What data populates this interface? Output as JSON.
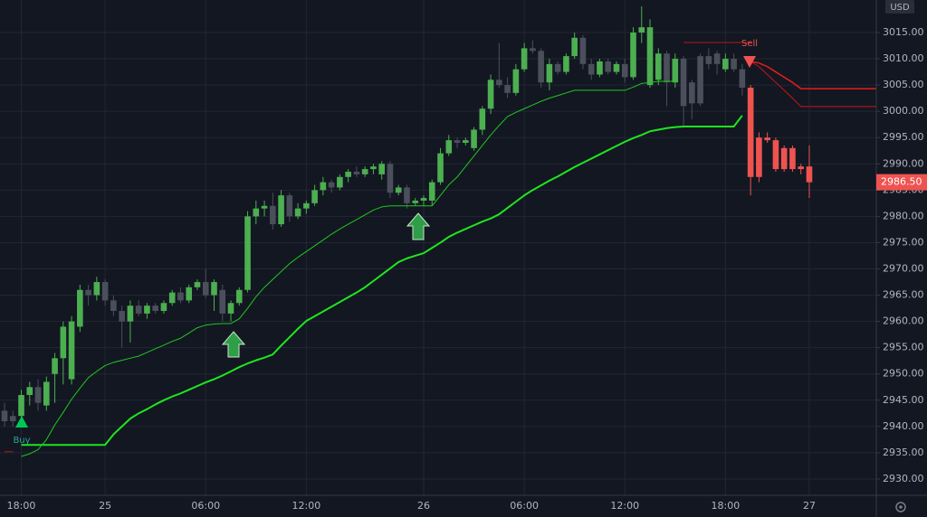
{
  "chart_data": {
    "type": "candlestick",
    "currency": "USD",
    "annotations": [
      "Buy",
      "Sell"
    ],
    "last_price": {
      "value": 2986.5,
      "label": "2986.50"
    },
    "grid": true,
    "ylim": [
      2926.9,
      3021.19
    ],
    "yticks": [
      {
        "value": 2930,
        "label": "2930.00"
      },
      {
        "value": 2935,
        "label": "2935.00"
      },
      {
        "value": 2940,
        "label": "2940.00"
      },
      {
        "value": 2945,
        "label": "2945.00"
      },
      {
        "value": 2950,
        "label": "2950.00"
      },
      {
        "value": 2955,
        "label": "2955.00"
      },
      {
        "value": 2960,
        "label": "2960.00"
      },
      {
        "value": 2965,
        "label": "2965.00"
      },
      {
        "value": 2970,
        "label": "2970.00"
      },
      {
        "value": 2975,
        "label": "2975.00"
      },
      {
        "value": 2980,
        "label": "2980.00"
      },
      {
        "value": 2985,
        "label": "2985.00"
      },
      {
        "value": 2990,
        "label": "2990.00"
      },
      {
        "value": 2995,
        "label": "2995.00"
      },
      {
        "value": 3000,
        "label": "3000.00"
      },
      {
        "value": 3005,
        "label": "3005.00"
      },
      {
        "value": 3010,
        "label": "3010.00"
      },
      {
        "value": 3015,
        "label": "3015.00"
      }
    ],
    "categories": [
      null,
      null,
      "18:00",
      null,
      null,
      null,
      null,
      null,
      null,
      null,
      null,
      null,
      "25",
      null,
      null,
      null,
      null,
      null,
      null,
      null,
      null,
      null,
      null,
      null,
      "06:00",
      null,
      null,
      null,
      null,
      null,
      null,
      null,
      null,
      null,
      null,
      null,
      "12:00",
      null,
      null,
      null,
      null,
      null,
      null,
      null,
      null,
      null,
      null,
      null,
      null,
      null,
      "26",
      null,
      null,
      null,
      null,
      null,
      null,
      null,
      null,
      null,
      null,
      null,
      "06:00",
      null,
      null,
      null,
      null,
      null,
      null,
      null,
      null,
      null,
      null,
      null,
      "12:00",
      null,
      null,
      null,
      null,
      null,
      null,
      null,
      null,
      null,
      null,
      null,
      "18:00",
      null,
      null,
      null,
      null,
      null,
      null,
      null,
      null,
      null,
      "27",
      null,
      null,
      null,
      null,
      null,
      null,
      null,
      null
    ],
    "open": [
      2943,
      2941,
      2942,
      2946,
      2947.5,
      2944,
      2950,
      2953,
      2949,
      2959,
      2966,
      2965,
      2967.5,
      2964,
      2962,
      2960,
      2963,
      2961.5,
      2963,
      2962,
      2963.5,
      2965.5,
      2964,
      2966.5,
      2967.5,
      2965,
      2966,
      2961.5,
      2963.5,
      2966,
      2980,
      2981.5,
      2982,
      2978.5,
      2984,
      2980,
      2981.5,
      2982.5,
      2985,
      2986.5,
      2985.5,
      2987.5,
      2988.5,
      2988,
      2989,
      2988,
      2990,
      2984.5,
      2985.5,
      2982.5,
      2983,
      2983,
      2986.5,
      2992,
      2994.5,
      2994,
      2993,
      2996.5,
      3000.5,
      3006,
      3005,
      3003.5,
      3008,
      3012,
      3011.5,
      3005.5,
      3009,
      3007.5,
      3010.5,
      3014,
      3009,
      3007,
      3009.5,
      3007.5,
      3009,
      3006.5,
      3015,
      3005,
      3006,
      3011,
      3005.5,
      3010,
      3005.5,
      3001.5,
      3010.5,
      3009,
      3008,
      3010,
      3008,
      3004.5,
      2987.5,
      2995,
      2994.5,
      2989,
      2993,
      2989,
      2989.5,
      null,
      null,
      null,
      null,
      null,
      null,
      null,
      null
    ],
    "high": [
      2944.5,
      2943,
      2947,
      2948.5,
      2949,
      2949.5,
      2954,
      2960,
      2961,
      2967,
      2967,
      2968.5,
      2968,
      2965,
      2963,
      2964,
      2964,
      2963.5,
      2963.5,
      2964,
      2966,
      2966.5,
      2967,
      2968,
      2970,
      2968,
      2967,
      2964,
      2966.5,
      2981,
      2983,
      2983,
      2984.5,
      2985,
      2984.5,
      2982.5,
      2983,
      2986,
      2987.5,
      2987,
      2988,
      2989,
      2989.5,
      2989.5,
      2990,
      2990.5,
      2990.5,
      2986,
      2986,
      2983.5,
      2984,
      2987,
      2993,
      2995.5,
      2995,
      2995,
      2997,
      3001,
      3007,
      3013,
      3006.5,
      3009,
      3013,
      3013.5,
      3012,
      3010,
      3009.5,
      3011,
      3015,
      3014.5,
      3010,
      3010,
      3010,
      3009.5,
      3010,
      3016,
      3020,
      3017.5,
      3012,
      3011.5,
      3011,
      3010.5,
      3006,
      3011,
      3012,
      3011.5,
      3011,
      3011,
      3009,
      3005,
      2996,
      2996,
      2995,
      2993.5,
      2993.5,
      2990,
      2993.5,
      null,
      null,
      null,
      null,
      null,
      null,
      null,
      null
    ],
    "low": [
      2940,
      2940,
      2941,
      2944,
      2943,
      2943,
      2944.5,
      2948,
      2948,
      2958,
      2963,
      2964,
      2963,
      2961,
      2955,
      2956,
      2961,
      2960.5,
      2961.5,
      2961.5,
      2963,
      2963.5,
      2963.5,
      2966,
      2964.5,
      2962,
      2960,
      2960,
      2963,
      2965.5,
      2978.5,
      2980,
      2977.5,
      2978,
      2979,
      2979.5,
      2980.5,
      2982,
      2984,
      2984.5,
      2985,
      2986.5,
      2987.5,
      2987.5,
      2988,
      2987,
      2983.5,
      2984,
      2981.5,
      2982,
      2982,
      2982,
      2986,
      2991.5,
      2993,
      2993.5,
      2992.5,
      2995.5,
      2999.5,
      3004.5,
      3002.5,
      3003,
      3007.5,
      3011,
      3004.5,
      3004,
      3007,
      3007,
      3010,
      3008,
      3006,
      3006.5,
      3007,
      3007,
      3005.5,
      3006,
      3013,
      3004.5,
      3005,
      3001,
      3004.5,
      2997,
      2998.5,
      3001,
      3008,
      3007,
      3007.5,
      3007.5,
      3003,
      2984,
      2986.5,
      2994,
      2988.5,
      2988.5,
      2988.5,
      2988,
      2983.5,
      null,
      null,
      null,
      null,
      null,
      null,
      null,
      null
    ],
    "close": [
      2941,
      2942,
      2946,
      2947.5,
      2944.5,
      2948.5,
      2953,
      2959,
      2960,
      2966,
      2965,
      2967.5,
      2964,
      2962,
      2960,
      2963,
      2961.5,
      2963,
      2962,
      2963.5,
      2965.5,
      2964,
      2966.5,
      2967.5,
      2965,
      2967.5,
      2961.5,
      2963.5,
      2966,
      2980,
      2981.5,
      2982,
      2978.5,
      2984,
      2980,
      2981.5,
      2982.5,
      2985,
      2986.5,
      2985.5,
      2987.5,
      2988.5,
      2988,
      2989,
      2989.5,
      2990,
      2984.5,
      2985.5,
      2982.5,
      2983,
      2983.5,
      2986.5,
      2992,
      2994.5,
      2994,
      2994.5,
      2996.5,
      3000.5,
      3006,
      3005,
      3003.5,
      3008,
      3012,
      3011.5,
      3005.5,
      3009,
      3007.5,
      3010.5,
      3014,
      3009,
      3007,
      3009.5,
      3007.5,
      3009,
      3006.5,
      3015,
      3016,
      3016,
      3011,
      3005.5,
      3010,
      3001,
      3001.5,
      3010.5,
      3009,
      3011,
      3010,
      3008,
      3004.5,
      2987.5,
      2995,
      2994.5,
      2989,
      2993,
      2989,
      2989.5,
      2986.5,
      null,
      null,
      null,
      null,
      null,
      null,
      null,
      null
    ],
    "colors": [
      "#4b4f5c",
      "#4b4f5c",
      "#4caf50",
      "#4caf50",
      "#4b4f5c",
      "#4caf50",
      "#4caf50",
      "#4caf50",
      "#4caf50",
      "#4caf50",
      "#4b4f5c",
      "#4caf50",
      "#4b4f5c",
      "#4b4f5c",
      "#4b4f5c",
      "#4caf50",
      "#4b4f5c",
      "#4caf50",
      "#4b4f5c",
      "#4caf50",
      "#4caf50",
      "#4b4f5c",
      "#4caf50",
      "#4caf50",
      "#4b4f5c",
      "#4caf50",
      "#4b4f5c",
      "#4caf50",
      "#4caf50",
      "#4caf50",
      "#4caf50",
      "#4caf50",
      "#4b4f5c",
      "#4caf50",
      "#4b4f5c",
      "#4caf50",
      "#4caf50",
      "#4caf50",
      "#4caf50",
      "#4b4f5c",
      "#4caf50",
      "#4caf50",
      "#4b4f5c",
      "#4caf50",
      "#4caf50",
      "#4caf50",
      "#4b4f5c",
      "#4caf50",
      "#4b4f5c",
      "#4caf50",
      "#4caf50",
      "#4caf50",
      "#4caf50",
      "#4caf50",
      "#4b4f5c",
      "#4caf50",
      "#4caf50",
      "#4caf50",
      "#4caf50",
      "#4b4f5c",
      "#4b4f5c",
      "#4caf50",
      "#4caf50",
      "#4b4f5c",
      "#4b4f5c",
      "#4caf50",
      "#4b4f5c",
      "#4caf50",
      "#4caf50",
      "#4b4f5c",
      "#4b4f5c",
      "#4caf50",
      "#4b4f5c",
      "#4caf50",
      "#4b4f5c",
      "#4caf50",
      "#4caf50",
      "#4caf50",
      "#4caf50",
      "#4b4f5c",
      "#4caf50",
      "#4b4f5c",
      "#4b4f5c",
      "#4b4f5c",
      "#4b4f5c",
      "#4b4f5c",
      "#4caf50",
      "#4b4f5c",
      "#4b4f5c",
      "#ef5350",
      "#ef5350",
      "#ef5350",
      "#ef5350",
      "#ef5350",
      "#ef5350",
      "#ef5350",
      "#ef5350",
      null,
      null,
      null,
      null,
      null,
      null,
      null,
      null
    ],
    "lines": [
      {
        "color": "#1ee61e",
        "width": 2,
        "values": [
          null,
          null,
          2936.5,
          2936.5,
          2936.5,
          2936.5,
          2936.5,
          2936.5,
          2936.5,
          2936.5,
          2936.5,
          2936.5,
          2936.5,
          2938.5,
          2940,
          2941.5,
          2942.5,
          2943.3,
          2944.2,
          2945,
          2945.7,
          2946.3,
          2947,
          2947.7,
          2948.4,
          2949,
          2949.7,
          2950.5,
          2951.3,
          2952,
          2952.6,
          2953.1,
          2953.7,
          2955.4,
          2957,
          2958.6,
          2960.1,
          2961,
          2961.9,
          2962.8,
          2963.7,
          2964.6,
          2965.5,
          2966.5,
          2967.7,
          2968.9,
          2970.1,
          2971.3,
          2972,
          2972.5,
          2973,
          2974,
          2975,
          2976.1,
          2976.9,
          2977.6,
          2978.3,
          2979,
          2979.6,
          2980.4,
          2981.6,
          2982.8,
          2984,
          2985,
          2985.9,
          2986.8,
          2987.6,
          2988.5,
          2989.4,
          2990.2,
          2991,
          2991.8,
          2992.6,
          2993.4,
          2994.2,
          2994.9,
          2995.5,
          2996.2,
          2996.5,
          2996.8,
          2997,
          2997.1,
          2997.1,
          2997.1,
          2997.1,
          2997.1,
          2997.1,
          2997.1,
          2999.2,
          null,
          null,
          null,
          null,
          null,
          null,
          null,
          null,
          null,
          null,
          null,
          null,
          null,
          null,
          null,
          null
        ]
      },
      {
        "color": "#1ec81e",
        "width": 1,
        "values": [
          null,
          null,
          2934.3,
          2934.8,
          2935.6,
          2937.5,
          2940.3,
          2942.7,
          2945.2,
          2947.3,
          2949.3,
          2950.5,
          2951.6,
          2952.2,
          2952.6,
          2953,
          2953.4,
          2954.1,
          2954.8,
          2955.5,
          2956.2,
          2956.8,
          2957.8,
          2958.8,
          2959.3,
          2959.5,
          2959.6,
          2959.6,
          2960.5,
          2962.5,
          2964.7,
          2966.5,
          2968,
          2969.5,
          2971,
          2972.2,
          2973.3,
          2974.4,
          2975.5,
          2976.6,
          2977.6,
          2978.5,
          2979.4,
          2980.3,
          2981.2,
          2981.8,
          2982,
          2982,
          2982,
          2982,
          2982,
          2982,
          2984,
          2986,
          2987.5,
          2989.5,
          2991.5,
          2993.5,
          2995.5,
          2997.3,
          2999,
          2999.8,
          3000.5,
          3001.2,
          3001.9,
          3002.5,
          3003,
          3003.5,
          3004,
          3004,
          3004,
          3004,
          3004,
          3004,
          3004,
          3004.6,
          3005.3,
          3005.5,
          3005.7,
          3005.7,
          3005.7,
          null,
          null,
          null,
          null,
          null,
          null,
          null,
          null,
          null,
          null,
          null,
          null,
          null,
          null,
          null,
          null,
          null,
          null,
          null,
          null,
          null,
          null,
          null,
          null
        ]
      },
      {
        "color": "#e81c1c",
        "width": 1.5,
        "values": [
          null,
          null,
          null,
          null,
          null,
          null,
          null,
          null,
          null,
          null,
          null,
          null,
          null,
          null,
          null,
          null,
          null,
          null,
          null,
          null,
          null,
          null,
          null,
          null,
          null,
          null,
          null,
          null,
          null,
          null,
          null,
          null,
          null,
          null,
          null,
          null,
          null,
          null,
          null,
          null,
          null,
          null,
          null,
          null,
          null,
          null,
          null,
          null,
          null,
          null,
          null,
          null,
          null,
          null,
          null,
          null,
          null,
          null,
          null,
          null,
          null,
          null,
          null,
          null,
          null,
          null,
          null,
          null,
          null,
          null,
          null,
          null,
          null,
          null,
          null,
          null,
          null,
          null,
          null,
          null,
          null,
          null,
          null,
          null,
          null,
          null,
          null,
          null,
          null,
          3009.5,
          3009.2,
          3008.5,
          3007.5,
          3006.5,
          3005.5,
          3004.3,
          3004.3,
          3004.3,
          3004.3,
          3004.3,
          3004.3,
          3004.3,
          3004.3,
          3004.3,
          3004.3
        ]
      },
      {
        "color": "#c41818",
        "width": 1,
        "values": [
          null,
          null,
          null,
          null,
          null,
          null,
          null,
          null,
          null,
          null,
          null,
          null,
          null,
          null,
          null,
          null,
          null,
          null,
          null,
          null,
          null,
          null,
          null,
          null,
          null,
          null,
          null,
          null,
          null,
          null,
          null,
          null,
          null,
          null,
          null,
          null,
          null,
          null,
          null,
          null,
          null,
          null,
          null,
          null,
          null,
          null,
          null,
          null,
          null,
          null,
          null,
          null,
          null,
          null,
          null,
          null,
          null,
          null,
          null,
          null,
          null,
          null,
          null,
          null,
          null,
          null,
          null,
          null,
          null,
          null,
          null,
          null,
          null,
          null,
          null,
          null,
          null,
          null,
          null,
          null,
          null,
          null,
          null,
          null,
          null,
          null,
          null,
          null,
          null,
          3009.5,
          3008.5,
          3007,
          3005.5,
          3004,
          3002.5,
          3000.9,
          3000.9,
          3000.9,
          3000.9,
          3000.9,
          3000.9,
          3000.9,
          3000.9,
          3000.9,
          3000.9
        ]
      },
      {
        "color": "#b01818",
        "width": 1,
        "values": [
          2935.2,
          2935.2,
          null,
          null,
          null,
          null,
          null,
          null,
          null,
          null,
          null,
          null,
          null,
          null,
          null,
          null,
          null,
          null,
          null,
          null,
          null,
          null,
          null,
          null,
          null,
          null,
          null,
          null,
          null,
          null,
          null,
          null,
          null,
          null,
          null,
          null,
          null,
          null,
          null,
          null,
          null,
          null,
          null,
          null,
          null,
          null,
          null,
          null,
          null,
          null,
          null,
          null,
          null,
          null,
          null,
          null,
          null,
          null,
          null,
          null,
          null,
          null,
          null,
          null,
          null,
          null,
          null,
          null,
          null,
          null,
          null,
          null,
          null,
          null,
          null,
          null,
          null,
          null,
          null,
          null,
          null,
          3013.1,
          3013.1,
          3013.1,
          3013.1,
          3013.1,
          3013.1,
          3013.1,
          3013.1,
          3013.1,
          null,
          null,
          null,
          null,
          null,
          null,
          null,
          null,
          null,
          null,
          null,
          null,
          null,
          null,
          null
        ]
      }
    ]
  }
}
